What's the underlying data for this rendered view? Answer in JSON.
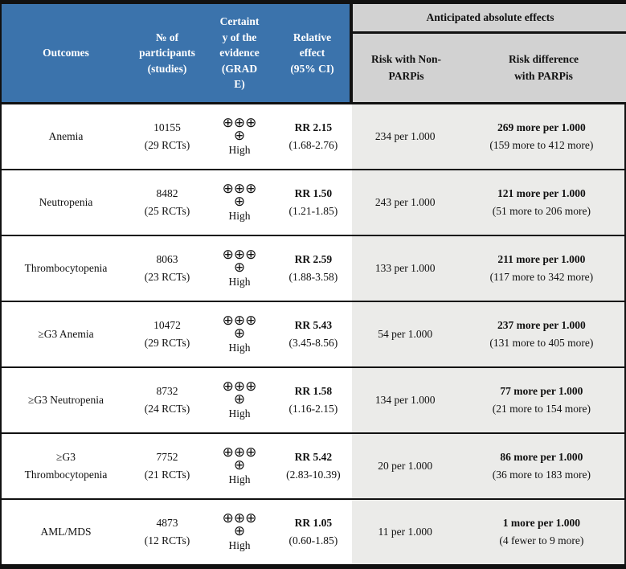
{
  "colors": {
    "header_blue": "#3b73ac",
    "header_text_white": "#ffffff",
    "absolute_header_gray": "#d2d2d2",
    "body_shaded_gray": "#ebebe9",
    "border_black": "#111111"
  },
  "header": {
    "outcomes": "Outcomes",
    "participants": "№ of\nparticipants\n(studies)",
    "certainty": "Certaint\ny of the\nevidence\n(GRAD\nE)",
    "relative_effect": "Relative\neffect\n(95% CI)",
    "absolute_effects_title": "Anticipated absolute effects",
    "risk_non_parpis": "Risk with Non-\nPARPis",
    "risk_difference": "Risk difference\nwith PARPis"
  },
  "rows": [
    {
      "outcome": "Anemia",
      "participants": "10155\n(29 RCTs)",
      "certainty_symbols": "⊕⊕⊕\n⊕",
      "certainty_level": "High",
      "rr": "RR 2.15",
      "ci": "(1.68-2.76)",
      "risk_control": "234 per 1.000",
      "risk_diff_main": "269 more per 1.000",
      "risk_diff_ci": "(159 more to 412 more)"
    },
    {
      "outcome": "Neutropenia",
      "participants": "8482\n(25 RCTs)",
      "certainty_symbols": "⊕⊕⊕\n⊕",
      "certainty_level": "High",
      "rr": "RR 1.50",
      "ci": "(1.21-1.85)",
      "risk_control": "243 per 1.000",
      "risk_diff_main": "121 more per 1.000",
      "risk_diff_ci": "(51 more to 206 more)"
    },
    {
      "outcome": "Thrombocytopenia",
      "participants": "8063\n(23 RCTs)",
      "certainty_symbols": "⊕⊕⊕\n⊕",
      "certainty_level": "High",
      "rr": "RR 2.59",
      "ci": "(1.88-3.58)",
      "risk_control": "133 per 1.000",
      "risk_diff_main": "211 more per 1.000",
      "risk_diff_ci": "(117 more to 342 more)"
    },
    {
      "outcome": "≥G3 Anemia",
      "participants": "10472\n(29 RCTs)",
      "certainty_symbols": "⊕⊕⊕\n⊕",
      "certainty_level": "High",
      "rr": "RR 5.43",
      "ci": "(3.45-8.56)",
      "risk_control": "54 per 1.000",
      "risk_diff_main": "237 more per 1.000",
      "risk_diff_ci": "(131 more to 405 more)"
    },
    {
      "outcome": "≥G3 Neutropenia",
      "participants": "8732\n(24 RCTs)",
      "certainty_symbols": "⊕⊕⊕\n⊕",
      "certainty_level": "High",
      "rr": "RR 1.58",
      "ci": "(1.16-2.15)",
      "risk_control": "134 per 1.000",
      "risk_diff_main": "77 more per 1.000",
      "risk_diff_ci": "(21 more to 154 more)"
    },
    {
      "outcome": "≥G3 Thrombocytopenia",
      "participants": "7752\n(21 RCTs)",
      "certainty_symbols": "⊕⊕⊕\n⊕",
      "certainty_level": "High",
      "rr": "RR 5.42",
      "ci": "(2.83-10.39)",
      "risk_control": "20 per 1.000",
      "risk_diff_main": "86 more per 1.000",
      "risk_diff_ci": "(36 more to 183 more)"
    },
    {
      "outcome": "AML/MDS",
      "participants": "4873\n(12 RCTs)",
      "certainty_symbols": "⊕⊕⊕\n⊕",
      "certainty_level": "High",
      "rr": "RR 1.05",
      "ci": "(0.60-1.85)",
      "risk_control": "11 per 1.000",
      "risk_diff_main": "1 more per 1.000",
      "risk_diff_ci": "(4 fewer to 9 more)"
    }
  ]
}
